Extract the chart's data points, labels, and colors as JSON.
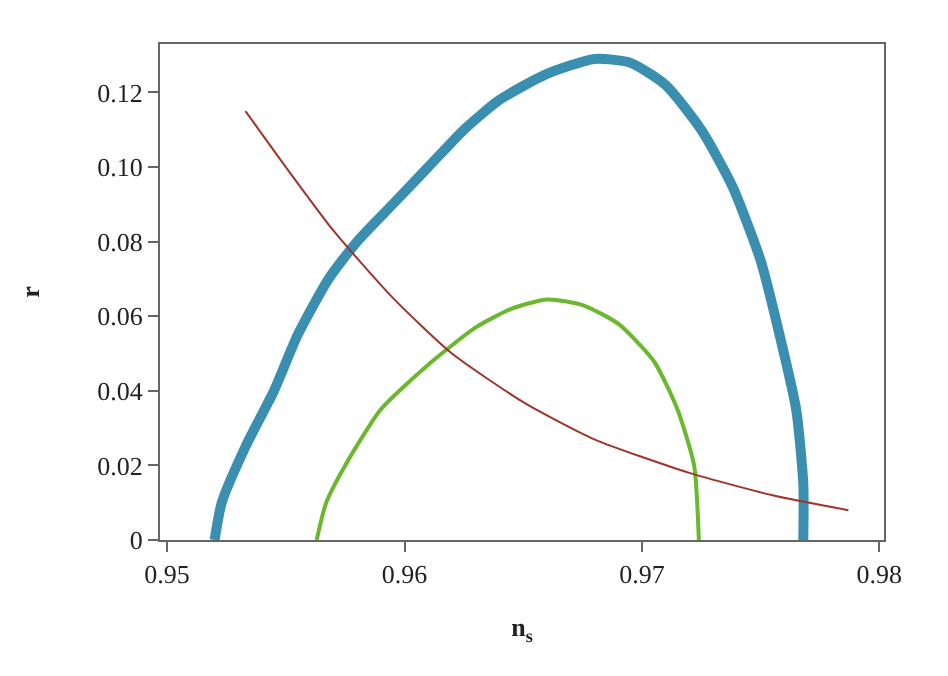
{
  "chart_data": {
    "type": "line",
    "xlabel": "n$_{s}$",
    "ylabel": "r",
    "xlim": [
      0.9497,
      0.9802
    ],
    "xticks": [
      0.95,
      0.96,
      0.97,
      0.98
    ],
    "ylim": [
      0,
      0.133
    ],
    "yticks": [
      {
        "value": 0,
        "label": "0"
      },
      0.02,
      0.04,
      0.06,
      0.08,
      {
        "value": 0.1,
        "label": "0.10"
      },
      0.12
    ],
    "marker": "none",
    "line_style": "solid",
    "series": [
      {
        "color": "#3a8fb0",
        "x": [
          0.952,
          0.9523,
          0.9533,
          0.9545,
          0.9555,
          0.9568,
          0.958,
          0.9595,
          0.961,
          0.9625,
          0.964,
          0.966,
          0.968,
          0.9695,
          0.971,
          0.9725,
          0.9738,
          0.975,
          0.9758,
          0.9765,
          0.9768,
          0.9768
        ],
        "values": [
          0,
          0.01,
          0.025,
          0.04,
          0.055,
          0.07,
          0.08,
          0.09,
          0.1,
          0.11,
          0.118,
          0.125,
          0.129,
          0.128,
          0.122,
          0.11,
          0.095,
          0.075,
          0.055,
          0.035,
          0.015,
          0
        ]
      },
      {
        "color": "#6ab82e",
        "x": [
          0.9563,
          0.9567,
          0.9575,
          0.959,
          0.961,
          0.963,
          0.9645,
          0.966,
          0.9675,
          0.969,
          0.9705,
          0.9715,
          0.9722,
          0.9724
        ],
        "values": [
          0,
          0.01,
          0.02,
          0.035,
          0.047,
          0.057,
          0.062,
          0.0645,
          0.063,
          0.058,
          0.048,
          0.035,
          0.02,
          0
        ]
      },
      {
        "color": "#a0342a",
        "x": [
          0.9533,
          0.955,
          0.957,
          0.9595,
          0.962,
          0.965,
          0.968,
          0.972,
          0.9755,
          0.9787
        ],
        "values": [
          0.115,
          0.1,
          0.083,
          0.065,
          0.05,
          0.037,
          0.027,
          0.018,
          0.012,
          0.008
        ]
      }
    ]
  }
}
